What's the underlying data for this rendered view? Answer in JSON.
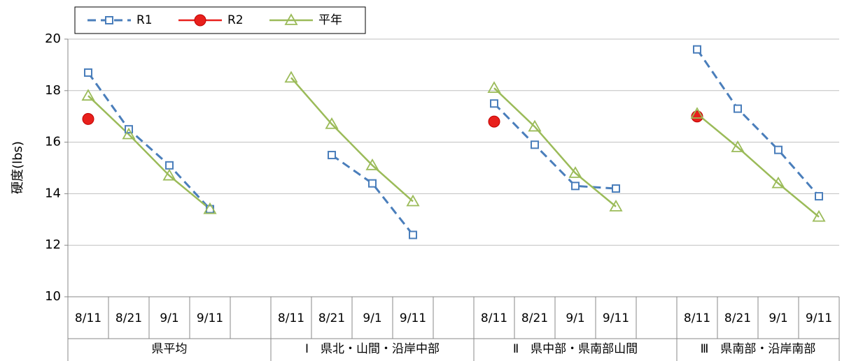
{
  "chart_data": {
    "type": "line",
    "y_label": "硬度(lbs)",
    "categories": [
      "8/11",
      "8/21",
      "9/1",
      "9/11",
      null,
      "8/11",
      "8/21",
      "9/1",
      "9/11",
      null,
      "8/11",
      "8/21",
      "9/1",
      "9/11",
      null,
      "8/11",
      "8/21",
      "9/1",
      "9/11"
    ],
    "category_groups": [
      "県平均",
      "Ⅰ　県北・山間・沿岸中部",
      "Ⅱ　県中部・県南部山間",
      "Ⅲ　県南部・沿岸南部"
    ],
    "series": [
      {
        "name": "R1",
        "color": "#4a7ebb",
        "dashed": true,
        "marker": "square",
        "values": [
          18.7,
          16.5,
          15.1,
          13.4,
          null,
          null,
          15.5,
          14.4,
          12.4,
          null,
          17.5,
          15.9,
          14.3,
          14.2,
          null,
          19.6,
          17.3,
          15.7,
          13.9
        ]
      },
      {
        "name": "R2",
        "color": "#e8201c",
        "dashed": false,
        "marker": "circle",
        "values": [
          16.9,
          null,
          null,
          null,
          null,
          null,
          null,
          null,
          null,
          null,
          16.8,
          null,
          null,
          null,
          null,
          17.0,
          null,
          null,
          null
        ]
      },
      {
        "name": "平年",
        "color": "#9bbb59",
        "dashed": false,
        "marker": "triangle",
        "values": [
          17.8,
          16.3,
          14.7,
          13.4,
          null,
          18.5,
          16.7,
          15.1,
          13.7,
          null,
          18.1,
          16.6,
          14.8,
          13.5,
          null,
          17.1,
          15.8,
          14.4,
          13.1
        ]
      }
    ],
    "ylim": [
      10,
      20
    ],
    "yticks": [
      10,
      12,
      14,
      16,
      18,
      20
    ],
    "grid": true,
    "legend": "top-left"
  }
}
